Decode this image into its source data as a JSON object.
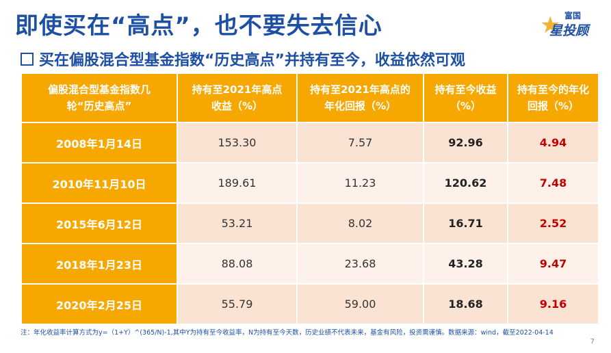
{
  "title": "即使买在“高点”，也不要失去信心",
  "logo": {
    "line1": "富国",
    "line2": "星投顾"
  },
  "subtitle": "买在偏股混合型基金指数“历史高点”并持有至今，收益依然可观",
  "table": {
    "headers": [
      "偏股混合型基金指数几轮“历史高点”",
      "持有至2021年高点收益（%）",
      "持有至2021年高点的年化回报（%）",
      "持有至今收益（%）",
      "持有至今的年化回报（%）"
    ],
    "rows": [
      {
        "date": "2008年1月14日",
        "v1": "153.30",
        "v2": "7.57",
        "v3": "92.96",
        "v4": "4.94"
      },
      {
        "date": "2010年11月10日",
        "v1": "189.61",
        "v2": "11.23",
        "v3": "120.62",
        "v4": "7.48"
      },
      {
        "date": "2015年6月12日",
        "v1": "53.21",
        "v2": "8.02",
        "v3": "16.71",
        "v4": "2.52"
      },
      {
        "date": "2018年1月23日",
        "v1": "88.08",
        "v2": "23.68",
        "v3": "43.28",
        "v4": "9.47"
      },
      {
        "date": "2020年2月25日",
        "v1": "55.79",
        "v2": "59.00",
        "v3": "18.68",
        "v4": "9.16"
      }
    ]
  },
  "note": "注：年化收益率计算方式为y=（1+Y）^(365/N)-1,其中Y为持有至今收益率，N为持有至今天数，历史业绩不代表未来，基金有风险，投资需谨慎。数据来源：wind，截至2022-04-14",
  "page_number": "7",
  "colors": {
    "title": "#1d4fa3",
    "header": "#f6a800",
    "accent_red": "#c00000"
  }
}
